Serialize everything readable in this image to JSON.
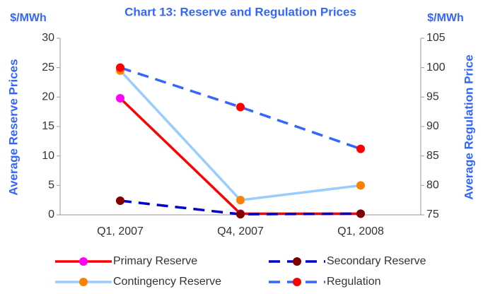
{
  "chart_data": {
    "type": "line",
    "title": "Chart 13: Reserve and Regulation Prices",
    "y_unit": "$/MWh",
    "y2_unit": "$/MWh",
    "ylabel": "Average Reserve Prices",
    "y2label": "Average Regulation Price",
    "categories": [
      "Q1, 2007",
      "Q4, 2007",
      "Q1, 2008"
    ],
    "ylim": [
      0,
      30
    ],
    "yticks": [
      0,
      5,
      10,
      15,
      20,
      25,
      30
    ],
    "y2lim": [
      75,
      105
    ],
    "y2ticks": [
      75,
      80,
      85,
      90,
      95,
      100,
      105
    ],
    "grid": false,
    "legend": "bottom",
    "series": [
      {
        "name": "Primary Reserve",
        "color": "#ff0000",
        "marker_color": "#ff00ff",
        "dash": false,
        "values": [
          19.8,
          0.2,
          0.2
        ]
      },
      {
        "name": "Secondary Reserve",
        "color": "#0000cc",
        "marker_color": "#800000",
        "dash": true,
        "values": [
          2.4,
          0.1,
          0.2
        ]
      },
      {
        "name": "Contingency Reserve",
        "color": "#99ccff",
        "marker_color": "#ff8000",
        "dash": false,
        "values": [
          24.5,
          2.5,
          5.0
        ]
      },
      {
        "name": "Regulation",
        "color": "#3366ff",
        "marker_color": "#ff0000",
        "dash": true,
        "axis": "y2",
        "values": [
          100,
          93.3,
          86.2
        ]
      }
    ]
  }
}
